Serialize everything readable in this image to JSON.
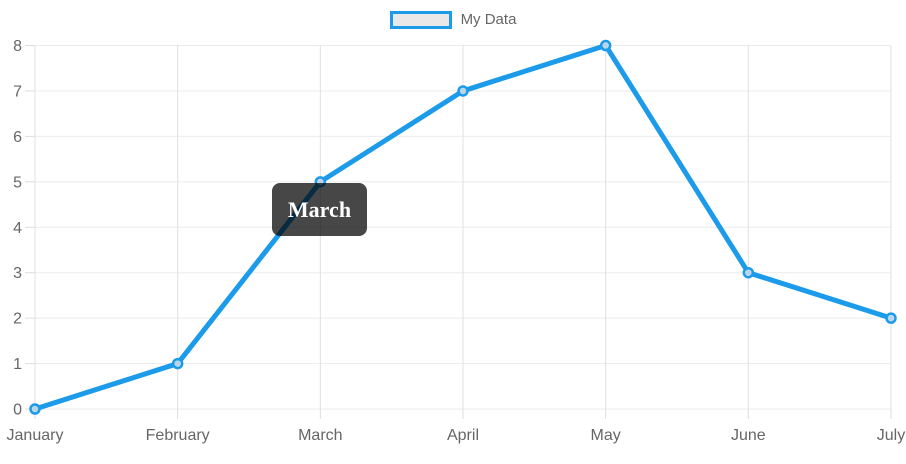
{
  "chart_data": {
    "type": "line",
    "title": "",
    "categories": [
      "January",
      "February",
      "March",
      "April",
      "May",
      "June",
      "July"
    ],
    "series": [
      {
        "name": "My Data",
        "values": [
          0,
          1,
          5,
          7,
          8,
          3,
          2
        ]
      }
    ],
    "xlabel": "",
    "ylabel": "",
    "ylim": [
      0,
      8
    ],
    "y_ticks": [
      0,
      1,
      2,
      3,
      4,
      5,
      6,
      7,
      8
    ],
    "grid": true,
    "legend_position": "top",
    "tooltip": {
      "title": "March",
      "visible": true
    },
    "colors": {
      "line": "#1b9be9",
      "point_fill": "#ccdcea",
      "grid_horizontal": "#ebebeb",
      "grid_vertical": "#e0e0e0",
      "tick": "#dddddd",
      "axis_text": "#666666",
      "tooltip_bg": "rgba(0,0,0,0.72)",
      "tooltip_text": "#ffffff",
      "legend_fill": "#e8e8e8"
    }
  }
}
